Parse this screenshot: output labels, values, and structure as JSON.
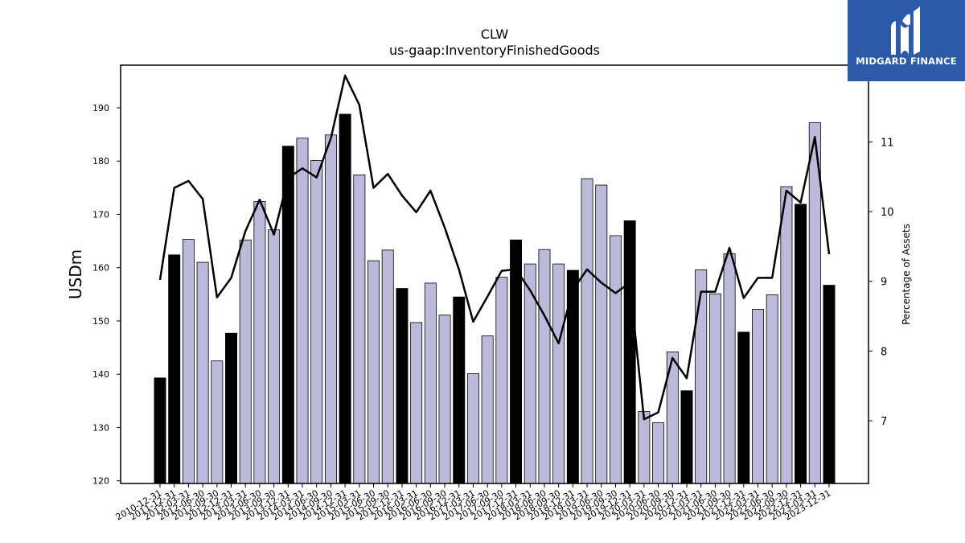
{
  "chart_data": {
    "type": "bar",
    "title": "CLW",
    "subtitle": "us-gaap:InventoryFinishedGoods",
    "ylabel": "USDm",
    "y2label": "Percentage of Assets",
    "ylim": [
      119.5,
      198
    ],
    "y2lim": [
      6.1,
      12.1
    ],
    "yticks": [
      120,
      130,
      140,
      150,
      160,
      170,
      180,
      190
    ],
    "y2ticks": [
      7,
      8,
      9,
      10,
      11
    ],
    "categories": [
      "2010-12-31",
      "2011-12-31",
      "2012-03-31",
      "2012-06-30",
      "2012-09-30",
      "2012-12-31",
      "2013-03-31",
      "2013-06-30",
      "2013-09-30",
      "2013-12-31",
      "2014-03-31",
      "2014-06-30",
      "2014-09-30",
      "2014-12-31",
      "2015-03-31",
      "2015-06-30",
      "2015-09-30",
      "2015-12-31",
      "2016-03-31",
      "2016-06-30",
      "2016-09-30",
      "2016-12-31",
      "2017-03-31",
      "2017-06-30",
      "2017-09-30",
      "2017-12-31",
      "2018-03-31",
      "2018-06-30",
      "2018-09-30",
      "2018-12-31",
      "2019-03-31",
      "2019-06-30",
      "2019-09-30",
      "2019-12-31",
      "2020-03-31",
      "2020-06-30",
      "2020-09-30",
      "2020-12-31",
      "2021-03-31",
      "2021-06-30",
      "2021-09-30",
      "2021-12-31",
      "2022-03-31",
      "2022-06-30",
      "2022-09-30",
      "2022-12-31",
      "2023-03-31",
      "2023-12-31"
    ],
    "series": [
      {
        "kind": "bar",
        "values": [
          139.3,
          162.4,
          165.3,
          161.0,
          142.5,
          147.7,
          165.2,
          172.4,
          167.1,
          182.8,
          184.3,
          180.1,
          184.9,
          188.8,
          177.4,
          161.3,
          163.3,
          156.1,
          149.7,
          157.1,
          151.1,
          154.5,
          140.1,
          147.2,
          158.2,
          165.2,
          160.7,
          163.4,
          160.7,
          159.5,
          176.7,
          175.5,
          166.0,
          168.8,
          133.0,
          130.9,
          144.2,
          136.9,
          159.6,
          155.1,
          162.6,
          147.9,
          152.2,
          154.9,
          175.2,
          171.9,
          187.2,
          156.7
        ]
      },
      {
        "kind": "line",
        "axis": "right",
        "values": [
          9.02,
          10.34,
          10.44,
          10.18,
          8.77,
          9.05,
          9.72,
          10.17,
          9.67,
          10.48,
          10.62,
          10.49,
          11.05,
          11.95,
          11.53,
          10.34,
          10.54,
          10.23,
          9.99,
          10.3,
          9.77,
          9.17,
          8.42,
          8.78,
          9.15,
          9.17,
          8.87,
          8.51,
          8.11,
          8.88,
          9.17,
          8.98,
          8.83,
          8.98,
          7.02,
          7.12,
          7.9,
          7.61,
          8.85,
          8.85,
          9.48,
          8.76,
          9.05,
          9.05,
          10.3,
          10.13,
          11.07,
          9.39
        ]
      }
    ],
    "highlight_color": "#000000",
    "bar_color": "#bcbadb",
    "grid": false
  },
  "logo": {
    "text": "MIDGARD FINANCE",
    "bg_color": "#2a5aa8"
  }
}
